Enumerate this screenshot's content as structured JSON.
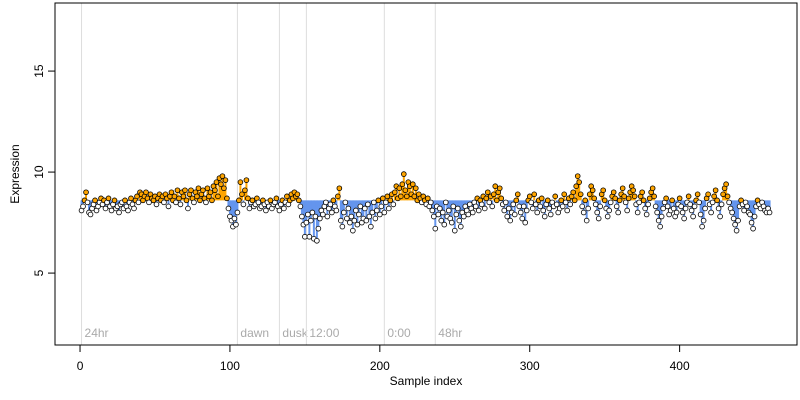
{
  "chart_data": {
    "type": "scatter",
    "xlabel": "Sample index",
    "ylabel": "Expression",
    "xlim": [
      -16.7,
      478.3
    ],
    "ylim": [
      1.44,
      18.37
    ],
    "xticks": [
      0,
      100,
      200,
      300,
      400
    ],
    "yticks": [
      5,
      10,
      15
    ],
    "reference": 8.6,
    "above_color": "#ffa500",
    "below_color": "#6495ed",
    "markers": [
      {
        "x": 1,
        "label": "24hr"
      },
      {
        "x": 105,
        "label": "dawn"
      },
      {
        "x": 133,
        "label": "dusk"
      },
      {
        "x": 151,
        "label": "12:00"
      },
      {
        "x": 203,
        "label": "0:00"
      },
      {
        "x": 237,
        "label": "48hr"
      }
    ],
    "x": [
      1,
      2,
      3,
      4,
      5,
      6,
      7,
      8,
      9,
      10,
      11,
      12,
      13,
      14,
      15,
      16,
      17,
      18,
      19,
      20,
      21,
      22,
      23,
      24,
      25,
      26,
      27,
      28,
      29,
      30,
      31,
      32,
      33,
      34,
      35,
      36,
      37,
      38,
      39,
      40,
      41,
      42,
      43,
      44,
      45,
      46,
      47,
      48,
      49,
      50,
      51,
      52,
      53,
      54,
      55,
      56,
      57,
      58,
      59,
      60,
      61,
      62,
      63,
      64,
      65,
      66,
      67,
      68,
      69,
      70,
      71,
      72,
      73,
      74,
      75,
      76,
      77,
      78,
      79,
      80,
      81,
      82,
      83,
      84,
      85,
      86,
      87,
      88,
      89,
      90,
      91,
      92,
      93,
      94,
      95,
      96,
      97,
      98,
      99,
      100,
      101,
      102,
      103,
      104,
      105,
      106,
      107,
      108,
      109,
      110,
      111,
      112,
      113,
      114,
      115,
      116,
      117,
      118,
      119,
      120,
      121,
      122,
      123,
      124,
      125,
      126,
      127,
      128,
      129,
      130,
      131,
      132,
      133,
      134,
      135,
      136,
      137,
      138,
      139,
      140,
      141,
      142,
      143,
      144,
      145,
      146,
      147,
      148,
      149,
      150,
      151,
      152,
      153,
      154,
      155,
      156,
      157,
      158,
      159,
      160,
      161,
      162,
      163,
      164,
      165,
      166,
      167,
      168,
      169,
      170,
      171,
      172,
      173,
      174,
      175,
      176,
      177,
      178,
      179,
      180,
      181,
      182,
      183,
      184,
      185,
      186,
      187,
      188,
      189,
      190,
      191,
      192,
      193,
      194,
      195,
      196,
      197,
      198,
      199,
      200,
      201,
      202,
      203,
      204,
      205,
      206,
      207,
      208,
      209,
      210,
      211,
      212,
      213,
      214,
      215,
      216,
      217,
      218,
      219,
      220,
      221,
      222,
      223,
      224,
      225,
      226,
      227,
      228,
      229,
      230,
      231,
      232,
      233,
      234,
      235,
      236,
      237,
      238,
      239,
      240,
      241,
      242,
      243,
      244,
      245,
      246,
      247,
      248,
      249,
      250,
      251,
      252,
      253,
      254,
      255,
      256,
      257,
      258,
      259,
      260,
      261,
      262,
      263,
      264,
      265,
      266,
      267,
      268,
      269,
      270,
      271,
      272,
      273,
      274,
      275,
      276,
      277,
      278,
      279,
      280,
      281,
      282,
      283,
      284,
      285,
      286,
      287,
      288,
      289,
      290,
      291,
      292,
      293,
      294,
      295,
      296,
      297,
      298,
      299,
      300,
      301,
      302,
      303,
      304,
      305,
      306,
      307,
      308,
      309,
      310,
      311,
      312,
      313,
      314,
      315,
      316,
      317,
      318,
      319,
      320,
      321,
      322,
      323,
      324,
      325,
      326,
      327,
      328,
      329,
      330,
      331,
      332,
      333,
      334,
      335,
      336,
      337,
      338,
      339,
      340,
      341,
      342,
      343,
      344,
      345,
      346,
      347,
      348,
      349,
      350,
      351,
      352,
      353,
      354,
      355,
      356,
      357,
      358,
      359,
      360,
      361,
      362,
      363,
      364,
      365,
      366,
      367,
      368,
      369,
      370,
      371,
      372,
      373,
      374,
      375,
      376,
      377,
      378,
      379,
      380,
      381,
      382,
      383,
      384,
      385,
      386,
      387,
      388,
      389,
      390,
      391,
      392,
      393,
      394,
      395,
      396,
      397,
      398,
      399,
      400,
      401,
      402,
      403,
      404,
      405,
      406,
      407,
      408,
      409,
      410,
      411,
      412,
      413,
      414,
      415,
      416,
      417,
      418,
      419,
      420,
      421,
      422,
      423,
      424,
      425,
      426,
      427,
      428,
      429,
      430,
      431,
      432,
      433,
      434,
      435,
      436,
      437,
      438,
      439,
      440,
      441,
      442,
      443,
      444,
      445,
      446,
      447,
      448,
      449,
      450,
      451,
      452,
      453,
      454,
      455,
      456,
      457,
      458,
      459,
      460
    ],
    "values": [
      8.1,
      8.3,
      8.6,
      9.0,
      8.5,
      8.0,
      7.9,
      8.2,
      8.4,
      8.6,
      8.1,
      8.3,
      8.5,
      8.7,
      8.4,
      8.6,
      8.2,
      8.5,
      8.7,
      8.3,
      8.1,
      8.4,
      8.6,
      8.2,
      8.3,
      8.0,
      8.4,
      8.5,
      8.2,
      8.6,
      8.3,
      8.1,
      8.5,
      8.7,
      8.4,
      8.2,
      8.6,
      8.8,
      8.5,
      9.0,
      8.9,
      8.6,
      8.8,
      9.0,
      8.7,
      8.5,
      8.9,
      8.7,
      8.6,
      8.8,
      8.4,
      8.7,
      8.9,
      8.6,
      8.8,
      8.5,
      8.9,
      8.7,
      8.3,
      8.8,
      9.0,
      8.6,
      8.8,
      8.5,
      9.1,
      8.7,
      8.4,
      9.0,
      8.8,
      9.1,
      8.6,
      8.2,
      8.9,
      9.1,
      8.7,
      8.5,
      9.0,
      8.8,
      9.2,
      8.6,
      8.9,
      9.1,
      8.7,
      8.5,
      9.2,
      8.8,
      9.0,
      8.6,
      9.3,
      9.1,
      9.5,
      8.8,
      9.7,
      9.4,
      9.8,
      9.2,
      9.6,
      8.7,
      8.2,
      7.8,
      7.6,
      7.3,
      7.7,
      7.4,
      8.0,
      8.6,
      9.5,
      8.9,
      8.4,
      9.1,
      9.6,
      8.7,
      8.2,
      8.5,
      8.6,
      8.3,
      8.4,
      8.7,
      8.5,
      8.2,
      8.3,
      8.6,
      8.4,
      8.1,
      8.5,
      8.3,
      8.6,
      8.2,
      8.4,
      8.5,
      8.7,
      8.3,
      8.1,
      8.4,
      8.6,
      8.2,
      8.5,
      8.8,
      8.4,
      8.6,
      8.9,
      8.7,
      9.0,
      8.8,
      8.9,
      8.6,
      8.3,
      7.8,
      7.4,
      6.8,
      7.5,
      7.9,
      6.8,
      7.6,
      8.0,
      6.7,
      7.8,
      6.6,
      7.2,
      7.7,
      8.1,
      7.9,
      8.3,
      8.5,
      7.8,
      8.2,
      8.4,
      8.0,
      8.6,
      8.3,
      8.1,
      8.8,
      9.2,
      7.6,
      7.3,
      8.0,
      8.5,
      7.7,
      8.2,
      7.5,
      7.8,
      7.1,
      7.6,
      8.1,
      7.4,
      7.9,
      8.3,
      7.5,
      7.7,
      8.2,
      7.6,
      8.4,
      7.8,
      7.3,
      8.0,
      8.5,
      7.7,
      8.1,
      8.6,
      7.9,
      8.3,
      8.7,
      8.0,
      8.5,
      8.8,
      8.2,
      8.6,
      8.9,
      8.4,
      9.0,
      9.3,
      8.7,
      9.2,
      8.8,
      9.4,
      9.9,
      9.1,
      8.8,
      9.5,
      9.3,
      8.9,
      9.4,
      8.8,
      9.2,
      8.6,
      8.9,
      8.7,
      8.5,
      8.8,
      8.6,
      8.4,
      8.7,
      8.3,
      8.5,
      8.1,
      7.8,
      7.2,
      8.3,
      7.9,
      8.2,
      7.6,
      8.0,
      7.4,
      8.5,
      7.8,
      8.1,
      7.7,
      7.5,
      8.3,
      7.1,
      7.9,
      8.2,
      7.6,
      7.3,
      8.0,
      7.8,
      8.3,
      8.1,
      7.9,
      8.4,
      8.2,
      8.0,
      8.5,
      8.3,
      8.7,
      8.1,
      8.6,
      8.4,
      8.8,
      8.2,
      8.7,
      9.0,
      8.5,
      8.8,
      8.3,
      8.9,
      9.3,
      8.6,
      9.0,
      9.2,
      8.7,
      8.4,
      8.1,
      8.5,
      7.8,
      8.2,
      7.6,
      8.0,
      8.4,
      7.9,
      8.6,
      8.9,
      8.3,
      8.0,
      7.7,
      8.3,
      7.5,
      8.1,
      8.6,
      8.8,
      8.5,
      8.2,
      8.9,
      8.4,
      8.0,
      8.6,
      8.3,
      8.7,
      8.1,
      7.8,
      8.4,
      8.6,
      8.2,
      7.9,
      8.5,
      8.3,
      8.8,
      8.4,
      8.0,
      8.2,
      8.6,
      8.3,
      8.9,
      8.5,
      8.1,
      8.7,
      8.4,
      8.8,
      9.0,
      8.6,
      9.3,
      9.8,
      9.5,
      8.9,
      8.3,
      8.0,
      8.6,
      7.6,
      8.2,
      8.9,
      9.3,
      9.1,
      8.7,
      8.4,
      8.0,
      7.7,
      8.3,
      8.9,
      9.1,
      8.6,
      8.2,
      7.8,
      8.1,
      8.5,
      8.8,
      9.0,
      8.7,
      8.3,
      8.0,
      8.6,
      8.9,
      9.2,
      8.8,
      8.5,
      8.1,
      8.7,
      9.0,
      9.3,
      9.1,
      8.8,
      8.4,
      8.0,
      8.5,
      8.8,
      9.0,
      8.6,
      8.2,
      7.9,
      8.4,
      8.7,
      9.0,
      9.2,
      8.8,
      8.3,
      8.0,
      7.6,
      7.3,
      7.8,
      8.2,
      8.5,
      8.7,
      8.3,
      7.9,
      8.1,
      8.6,
      8.2,
      7.8,
      8.0,
      8.4,
      8.7,
      8.3,
      8.0,
      7.7,
      8.2,
      8.5,
      8.8,
      8.4,
      8.1,
      7.8,
      8.3,
      8.6,
      8.9,
      8.5,
      7.9,
      7.3,
      7.6,
      8.2,
      8.7,
      8.9,
      8.4,
      8.0,
      8.5,
      8.8,
      9.1,
      8.6,
      8.2,
      7.8,
      8.4,
      8.9,
      9.2,
      9.4,
      8.8,
      8.5,
      8.2,
      8.0,
      7.7,
      7.4,
      7.1,
      7.6,
      8.3,
      8.6,
      8.4,
      8.1,
      8.5,
      8.3,
      8.0,
      7.9,
      7.5,
      7.2,
      7.8,
      8.3,
      8.6,
      8.4,
      8.2,
      8.5,
      8.3,
      8.1,
      8.0,
      8.2,
      8.0
    ]
  }
}
